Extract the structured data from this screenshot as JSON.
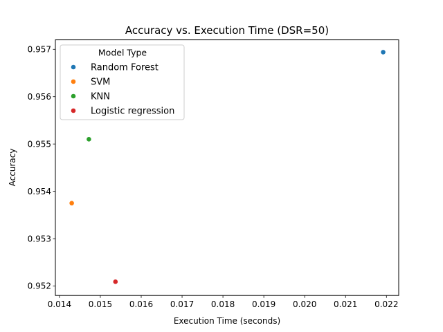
{
  "chart_data": {
    "type": "scatter",
    "title": "Accuracy vs. Execution Time (DSR=50)",
    "xlabel": "Execution Time (seconds)",
    "ylabel": "Accuracy",
    "xlim": [
      0.0139,
      0.0223
    ],
    "ylim": [
      0.9518,
      0.9572
    ],
    "x_ticks": [
      0.014,
      0.015,
      0.016,
      0.017,
      0.018,
      0.019,
      0.02,
      0.021,
      0.022
    ],
    "x_tick_labels": [
      "0.014",
      "0.015",
      "0.016",
      "0.017",
      "0.018",
      "0.019",
      "0.020",
      "0.021",
      "0.022"
    ],
    "y_ticks": [
      0.952,
      0.953,
      0.954,
      0.955,
      0.956,
      0.957
    ],
    "y_tick_labels": [
      "0.952",
      "0.953",
      "0.954",
      "0.955",
      "0.956",
      "0.957"
    ],
    "grid": false,
    "legend": {
      "title": "Model Type",
      "placement": "top-left"
    },
    "series": [
      {
        "name": "Random Forest",
        "color": "#1f77b4",
        "x": [
          0.02192
        ],
        "y": [
          0.95694
        ]
      },
      {
        "name": "SVM",
        "color": "#ff7f0e",
        "x": [
          0.0143
        ],
        "y": [
          0.95375
        ]
      },
      {
        "name": "KNN",
        "color": "#2ca02c",
        "x": [
          0.01472
        ],
        "y": [
          0.9551
        ]
      },
      {
        "name": "Logistic regression",
        "color": "#d62728",
        "x": [
          0.01537
        ],
        "y": [
          0.95209
        ]
      }
    ]
  }
}
